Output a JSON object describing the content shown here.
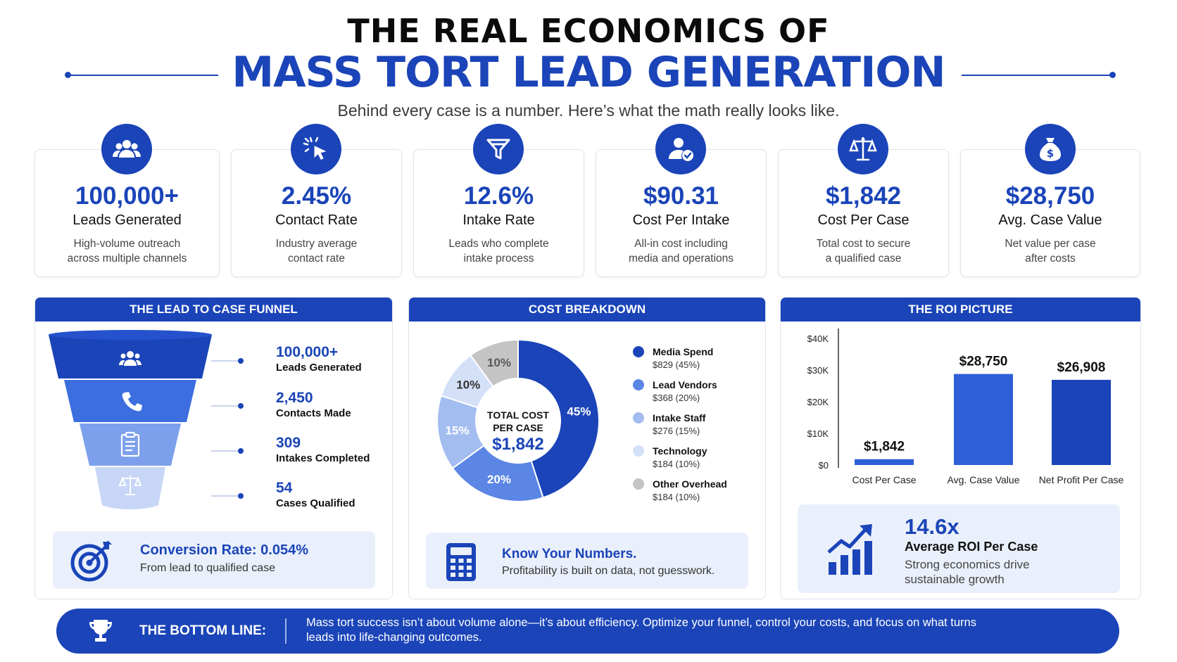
{
  "header": {
    "title_line1": "THE REAL ECONOMICS OF",
    "title_line2": "MASS TORT LEAD GENERATION",
    "subtitle": "Behind every case is a number. Here’s what the math really looks like."
  },
  "colors": {
    "primary": "#1a44b8",
    "light_bg": "#eaf0fb",
    "white": "#ffffff"
  },
  "stats": [
    {
      "icon": "users-icon",
      "value": "100,000+",
      "label": "Leads Generated",
      "desc1": "High-volume outreach",
      "desc2": "across multiple channels"
    },
    {
      "icon": "click-cursor-icon",
      "value": "2.45%",
      "label": "Contact Rate",
      "desc1": "Industry average",
      "desc2": "contact rate"
    },
    {
      "icon": "filter-icon",
      "value": "12.6%",
      "label": "Intake Rate",
      "desc1": "Leads who complete",
      "desc2": "intake process"
    },
    {
      "icon": "user-check-icon",
      "value": "$90.31",
      "label": "Cost Per Intake",
      "desc1": "All-in cost including",
      "desc2": "media and operations"
    },
    {
      "icon": "scales-icon",
      "value": "$1,842",
      "label": "Cost Per Case",
      "desc1": "Total cost to secure",
      "desc2": "a qualified case"
    },
    {
      "icon": "money-bag-icon",
      "value": "$28,750",
      "label": "Avg. Case Value",
      "desc1": "Net value per case",
      "desc2": "after costs"
    }
  ],
  "funnel": {
    "heading": "THE LEAD TO CASE FUNNEL",
    "stages": [
      {
        "icon": "users-icon",
        "value": "100,000+",
        "label": "Leads Generated"
      },
      {
        "icon": "phone-icon",
        "value": "2,450",
        "label": "Contacts Made"
      },
      {
        "icon": "clipboard-icon",
        "value": "309",
        "label": "Intakes Completed"
      },
      {
        "icon": "scales-icon",
        "value": "54",
        "label": "Cases Qualified"
      }
    ],
    "callout_title": "Conversion Rate: 0.054%",
    "callout_sub": "From lead to qualified case"
  },
  "cost_breakdown": {
    "heading": "COST BREAKDOWN",
    "center_line1": "TOTAL COST",
    "center_line2": "PER CASE",
    "center_value": "$1,842",
    "callout_title": "Know Your Numbers.",
    "callout_sub": "Profitability is built on data, not guesswork."
  },
  "roi": {
    "heading": "THE ROI PICTURE",
    "value": "14.6x",
    "title": "Average ROI Per Case",
    "sub1": "Strong economics drive",
    "sub2": "sustainable growth"
  },
  "bottom": {
    "heading": "THE BOTTOM LINE:",
    "text1": "Mass tort success isn’t about volume alone—it’s about efficiency. Optimize your funnel, control your costs, and focus on what turns",
    "text2": "leads into life-changing outcomes."
  },
  "chart_data": [
    {
      "type": "pie",
      "title": "COST BREAKDOWN",
      "slices": [
        {
          "name": "Media Spend",
          "value_label": "$829 (45%)",
          "value": 829,
          "percent": 45,
          "pct_label": "45%",
          "color": "#1a44b8"
        },
        {
          "name": "Lead Vendors",
          "value_label": "$368 (20%)",
          "value": 368,
          "percent": 20,
          "pct_label": "20%",
          "color": "#5b86e5"
        },
        {
          "name": "Intake Staff",
          "value_label": "$276 (15%)",
          "value": 276,
          "percent": 15,
          "pct_label": "15%",
          "color": "#a3bdf0"
        },
        {
          "name": "Technology",
          "value_label": "$184 (10%)",
          "value": 184,
          "percent": 10,
          "pct_label": "10%",
          "color": "#d3e0f8"
        },
        {
          "name": "Other Overhead",
          "value_label": "$184 (10%)",
          "value": 184,
          "percent": 10,
          "pct_label": "10%",
          "color": "#c4c4c4"
        }
      ]
    },
    {
      "type": "bar",
      "title": "THE ROI PICTURE",
      "categories": [
        "Cost Per Case",
        "Avg. Case Value",
        "Net Profit Per Case"
      ],
      "values": [
        1842,
        28750,
        26908
      ],
      "value_labels": [
        "$1,842",
        "$28,750",
        "$26,908"
      ],
      "colors": [
        "#2f5fd8",
        "#2f5fd8",
        "#1a44b8"
      ],
      "yticks": [
        0,
        10000,
        20000,
        30000,
        40000
      ],
      "ytick_labels": [
        "$0",
        "$10K",
        "$20K",
        "$30K",
        "$40K"
      ],
      "ylim": [
        0,
        40000
      ],
      "grid": false
    }
  ]
}
